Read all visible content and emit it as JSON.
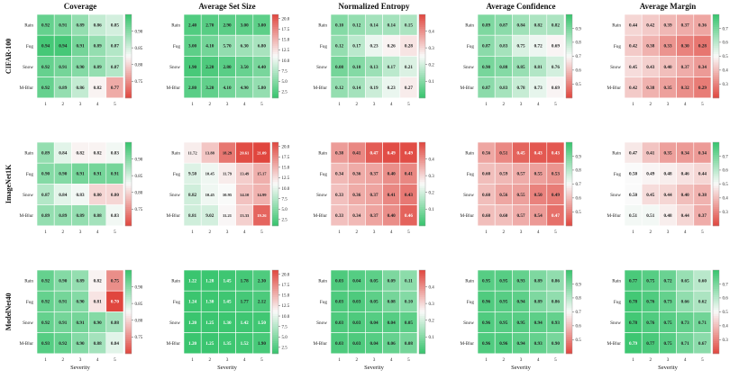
{
  "chart_data": {
    "type": "heatmap",
    "x_label": "Severity",
    "x_ticks": [
      "1",
      "2",
      "3",
      "4",
      "5"
    ],
    "y_ticks": [
      "Rain",
      "Fog",
      "Snow",
      "M-Blur"
    ],
    "datasets": [
      "CIFAR-100",
      "ImageNet1K",
      "ModelNet40"
    ],
    "metrics": [
      {
        "title": "Coverage",
        "cbar_range": [
          0.7,
          0.95
        ],
        "cbar_ticks": [
          "0.75",
          "0.80",
          "0.85",
          "0.90"
        ],
        "colormap": "red-white-green (higher is greener)",
        "grids": [
          [
            [
              "0.92",
              "0.91",
              "0.89",
              "0.86",
              "0.85"
            ],
            [
              "0.94",
              "0.94",
              "0.91",
              "0.89",
              "0.87"
            ],
            [
              "0.92",
              "0.91",
              "0.90",
              "0.89",
              "0.87"
            ],
            [
              "0.92",
              "0.89",
              "0.86",
              "0.82",
              "0.77"
            ]
          ],
          [
            [
              "0.89",
              "0.84",
              "0.82",
              "0.82",
              "0.83"
            ],
            [
              "0.90",
              "0.90",
              "0.91",
              "0.91",
              "0.91"
            ],
            [
              "0.87",
              "0.84",
              "0.83",
              "0.80",
              "0.80"
            ],
            [
              "0.89",
              "0.89",
              "0.89",
              "0.88",
              "0.83"
            ]
          ],
          [
            [
              "0.92",
              "0.90",
              "0.89",
              "0.82",
              "0.75"
            ],
            [
              "0.92",
              "0.91",
              "0.90",
              "0.81",
              "0.70"
            ],
            [
              "0.92",
              "0.91",
              "0.91",
              "0.90",
              "0.88"
            ],
            [
              "0.93",
              "0.92",
              "0.90",
              "0.88",
              "0.84"
            ]
          ]
        ]
      },
      {
        "title": "Average Set Size",
        "cbar_range": [
          1.0,
          21.0
        ],
        "cbar_ticks": [
          "2.5",
          "5.0",
          "7.5",
          "10.0",
          "12.5",
          "15.0",
          "17.5",
          "20.0"
        ],
        "colormap": "green-white-red (higher is redder)",
        "grids": [
          [
            [
              "2.40",
              "2.70",
              "2.90",
              "3.00",
              "3.00"
            ],
            [
              "3.00",
              "4.10",
              "5.70",
              "6.30",
              "6.80"
            ],
            [
              "1.90",
              "2.20",
              "2.80",
              "3.50",
              "4.40"
            ],
            [
              "2.80",
              "3.20",
              "4.10",
              "4.90",
              "5.80"
            ]
          ],
          [
            [
              "11.72",
              "13.88",
              "18.29",
              "20.61",
              "21.09"
            ],
            [
              "9.50",
              "10.45",
              "11.79",
              "13.49",
              "15.17"
            ],
            [
              "8.82",
              "10.45",
              "10.95",
              "14.10",
              "14.99"
            ],
            [
              "8.81",
              "9.02",
              "11.21",
              "13.33",
              "19.26"
            ]
          ],
          [
            [
              "1.22",
              "1.28",
              "1.45",
              "1.78",
              "2.30"
            ],
            [
              "1.24",
              "1.30",
              "1.45",
              "1.77",
              "2.12"
            ],
            [
              "1.20",
              "1.25",
              "1.30",
              "1.42",
              "1.50"
            ],
            [
              "1.20",
              "1.25",
              "1.35",
              "1.52",
              "1.90"
            ]
          ]
        ]
      },
      {
        "title": "Normalized Entropy",
        "cbar_range": [
          0.0,
          0.5
        ],
        "cbar_ticks": [
          "0.1",
          "0.2",
          "0.3",
          "0.4"
        ],
        "colormap": "green-white-red (higher is redder)",
        "grids": [
          [
            [
              "0.10",
              "0.12",
              "0.14",
              "0.14",
              "0.15"
            ],
            [
              "0.12",
              "0.17",
              "0.23",
              "0.26",
              "0.28"
            ],
            [
              "0.08",
              "0.10",
              "0.13",
              "0.17",
              "0.21"
            ],
            [
              "0.12",
              "0.14",
              "0.19",
              "0.23",
              "0.27"
            ]
          ],
          [
            [
              "0.38",
              "0.41",
              "0.47",
              "0.49",
              "0.49"
            ],
            [
              "0.34",
              "0.36",
              "0.37",
              "0.40",
              "0.41"
            ],
            [
              "0.33",
              "0.36",
              "0.37",
              "0.41",
              "0.43"
            ],
            [
              "0.33",
              "0.34",
              "0.37",
              "0.40",
              "0.46"
            ]
          ],
          [
            [
              "0.03",
              "0.04",
              "0.05",
              "0.09",
              "0.11"
            ],
            [
              "0.03",
              "0.03",
              "0.05",
              "0.08",
              "0.10"
            ],
            [
              "0.03",
              "0.03",
              "0.04",
              "0.04",
              "0.05"
            ],
            [
              "0.03",
              "0.03",
              "0.04",
              "0.06",
              "0.08"
            ]
          ]
        ]
      },
      {
        "title": "Average Confidence",
        "cbar_range": [
          0.4,
          1.0
        ],
        "cbar_ticks": [
          "0.5",
          "0.6",
          "0.7",
          "0.8",
          "0.9"
        ],
        "colormap": "red-white-green (higher is greener)",
        "grids": [
          [
            [
              "0.89",
              "0.87",
              "0.84",
              "0.82",
              "0.82"
            ],
            [
              "0.87",
              "0.83",
              "0.75",
              "0.72",
              "0.69"
            ],
            [
              "0.90",
              "0.88",
              "0.85",
              "0.81",
              "0.76"
            ],
            [
              "0.87",
              "0.83",
              "0.78",
              "0.73",
              "0.69"
            ]
          ],
          [
            [
              "0.56",
              "0.51",
              "0.45",
              "0.43",
              "0.43"
            ],
            [
              "0.60",
              "0.59",
              "0.57",
              "0.55",
              "0.53"
            ],
            [
              "0.60",
              "0.56",
              "0.55",
              "0.50",
              "0.49"
            ],
            [
              "0.60",
              "0.60",
              "0.57",
              "0.54",
              "0.47"
            ]
          ],
          [
            [
              "0.95",
              "0.95",
              "0.93",
              "0.89",
              "0.86"
            ],
            [
              "0.96",
              "0.95",
              "0.94",
              "0.89",
              "0.86"
            ],
            [
              "0.96",
              "0.95",
              "0.95",
              "0.94",
              "0.93"
            ],
            [
              "0.96",
              "0.96",
              "0.94",
              "0.93",
              "0.90"
            ]
          ]
        ]
      },
      {
        "title": "Average Margin",
        "cbar_range": [
          0.2,
          0.8
        ],
        "cbar_ticks": [
          "0.3",
          "0.4",
          "0.5",
          "0.6",
          "0.7"
        ],
        "colormap": "red-white-green (higher is greener)",
        "grids": [
          [
            [
              "0.44",
              "0.42",
              "0.39",
              "0.37",
              "0.36"
            ],
            [
              "0.42",
              "0.38",
              "0.33",
              "0.30",
              "0.28"
            ],
            [
              "0.45",
              "0.43",
              "0.40",
              "0.37",
              "0.34"
            ],
            [
              "0.42",
              "0.38",
              "0.35",
              "0.32",
              "0.29"
            ]
          ],
          [
            [
              "0.47",
              "0.41",
              "0.35",
              "0.34",
              "0.34"
            ],
            [
              "0.50",
              "0.49",
              "0.48",
              "0.46",
              "0.44"
            ],
            [
              "0.50",
              "0.45",
              "0.44",
              "0.40",
              "0.38"
            ],
            [
              "0.51",
              "0.51",
              "0.48",
              "0.44",
              "0.37"
            ]
          ],
          [
            [
              "0.77",
              "0.75",
              "0.72",
              "0.65",
              "0.60"
            ],
            [
              "0.78",
              "0.76",
              "0.73",
              "0.66",
              "0.62"
            ],
            [
              "0.78",
              "0.76",
              "0.75",
              "0.73",
              "0.71"
            ],
            [
              "0.79",
              "0.77",
              "0.75",
              "0.71",
              "0.67"
            ]
          ]
        ]
      }
    ]
  },
  "colors": {
    "red": "#e0463e",
    "white": "#fafafa",
    "green": "#36c46c",
    "text_dark": "#222222",
    "text_light": "#ffffff"
  }
}
